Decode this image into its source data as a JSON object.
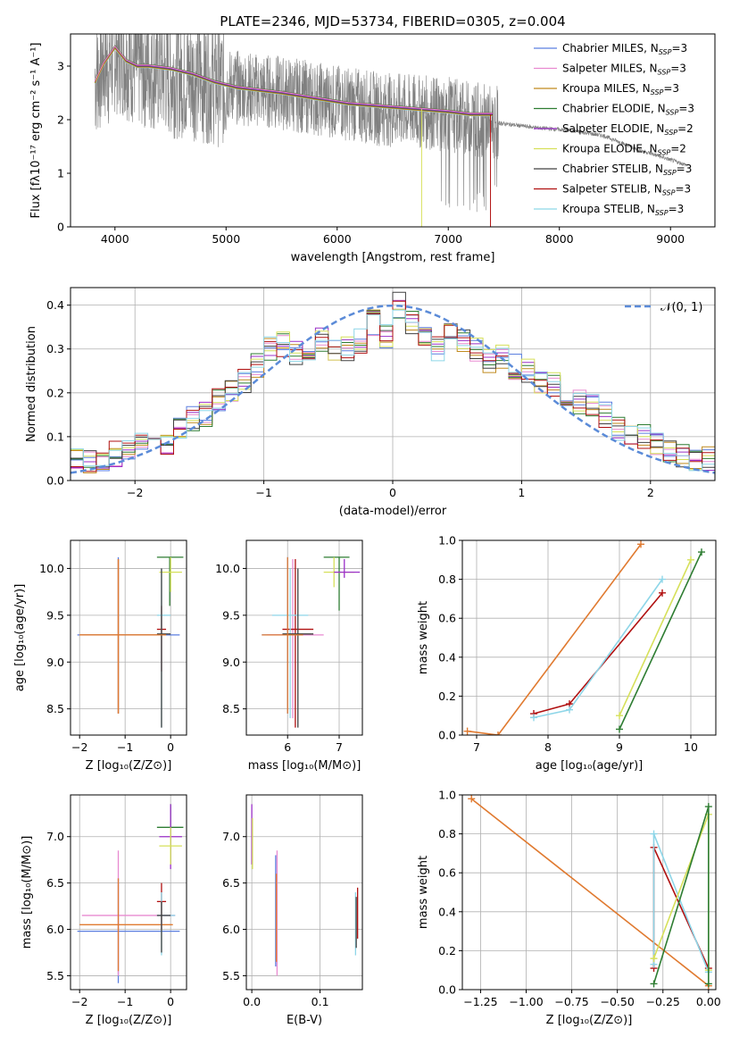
{
  "figure": {
    "title": "PLATE=2346, MJD=53734, FIBERID=0305, z=0.004"
  },
  "colors": [
    "#5b7fe0",
    "#e88ad0",
    "#c08a1e",
    "#2e7d32",
    "#9b30c8",
    "#d6e05a",
    "#404040",
    "#b01010",
    "#8ed6e8"
  ],
  "chart_data": [
    {
      "id": "spectrum",
      "type": "line",
      "xlabel": "wavelength [Angstrom, rest frame]",
      "ylabel": "Flux [fλ10⁻¹⁷ erg cm⁻² s⁻¹ A⁻¹]",
      "xlim": [
        3600,
        9400
      ],
      "ylim": [
        0,
        3.6
      ],
      "xticks": [
        4000,
        5000,
        6000,
        7000,
        8000,
        9000
      ],
      "yticks": [
        0,
        1,
        2,
        3
      ],
      "legend_position": "top-right",
      "legend": [
        {
          "name": "Chabrier MILES, N",
          "sub": "SSP",
          "tail": "=3"
        },
        {
          "name": "Salpeter MILES, N",
          "sub": "SSP",
          "tail": "=3"
        },
        {
          "name": "Kroupa MILES, N",
          "sub": "SSP",
          "tail": "=3"
        },
        {
          "name": "Chabrier ELODIE, N",
          "sub": "SSP",
          "tail": "=3"
        },
        {
          "name": "Salpeter ELODIE, N",
          "sub": "SSP",
          "tail": "=2"
        },
        {
          "name": "Kroupa ELODIE, N",
          "sub": "SSP",
          "tail": "=2"
        },
        {
          "name": "Chabrier STELIB, N",
          "sub": "SSP",
          "tail": "=3"
        },
        {
          "name": "Salpeter STELIB, N",
          "sub": "SSP",
          "tail": "=3"
        },
        {
          "name": "Kroupa STELIB, N",
          "sub": "SSP",
          "tail": "=3"
        }
      ],
      "data_x": [
        3820,
        3860,
        3900,
        3950,
        4000,
        4100,
        4200,
        4300,
        4500,
        4700,
        4900,
        5100,
        5300,
        5500,
        5800,
        6100,
        6400,
        6700,
        7000,
        7400,
        7800,
        8100,
        8400,
        8700,
        9000,
        9150
      ],
      "data_y": [
        2.8,
        2.9,
        3.1,
        3.0,
        3.3,
        3.2,
        3.0,
        3.0,
        2.85,
        2.8,
        2.7,
        2.6,
        2.55,
        2.5,
        2.4,
        2.3,
        2.2,
        2.15,
        2.1,
        1.95,
        1.85,
        1.8,
        1.7,
        1.45,
        1.25,
        1.15
      ],
      "model_x": [
        3820,
        3900,
        4000,
        4100,
        4200,
        4300,
        4500,
        4700,
        4900,
        5100,
        5300,
        5500,
        5800,
        6100,
        6400,
        6700,
        7000,
        7200,
        7400
      ],
      "model_y": [
        2.7,
        3.05,
        3.35,
        3.1,
        3.0,
        3.0,
        2.95,
        2.85,
        2.7,
        2.6,
        2.55,
        2.5,
        2.4,
        2.3,
        2.25,
        2.2,
        2.15,
        2.1,
        2.1
      ]
    },
    {
      "id": "residuals",
      "type": "line",
      "xlabel": "(data-model)/error",
      "ylabel": "Normed distribution",
      "xlim": [
        -2.5,
        2.5
      ],
      "ylim": [
        0,
        0.44
      ],
      "xticks": [
        -2,
        -1,
        0,
        1,
        2
      ],
      "yticks": [
        0.0,
        0.1,
        0.2,
        0.3,
        0.4
      ],
      "legend": "𝒩(0, 1)",
      "legend_position": "top-right",
      "grid": true,
      "hist_x": [
        -2.5,
        -2.4,
        -2.3,
        -2.2,
        -2.1,
        -2.0,
        -1.9,
        -1.8,
        -1.7,
        -1.6,
        -1.5,
        -1.4,
        -1.3,
        -1.2,
        -1.1,
        -1.0,
        -0.9,
        -0.8,
        -0.7,
        -0.6,
        -0.5,
        -0.4,
        -0.3,
        -0.2,
        -0.1,
        0.0,
        0.1,
        0.2,
        0.3,
        0.4,
        0.5,
        0.6,
        0.7,
        0.8,
        0.9,
        1.0,
        1.1,
        1.2,
        1.3,
        1.4,
        1.5,
        1.6,
        1.7,
        1.8,
        1.9,
        2.0,
        2.1,
        2.2,
        2.3,
        2.4
      ],
      "hist_y": [
        0.05,
        0.045,
        0.04,
        0.06,
        0.07,
        0.1,
        0.08,
        0.08,
        0.12,
        0.14,
        0.15,
        0.18,
        0.2,
        0.23,
        0.26,
        0.3,
        0.31,
        0.29,
        0.28,
        0.32,
        0.3,
        0.3,
        0.32,
        0.36,
        0.33,
        0.4,
        0.36,
        0.32,
        0.3,
        0.33,
        0.32,
        0.3,
        0.27,
        0.28,
        0.26,
        0.25,
        0.22,
        0.22,
        0.19,
        0.18,
        0.17,
        0.15,
        0.12,
        0.11,
        0.1,
        0.08,
        0.07,
        0.06,
        0.05,
        0.05
      ]
    },
    {
      "id": "age-vs-Z",
      "type": "scatter",
      "xlabel": "Z [log₁₀(Z/Z⊙)]",
      "ylabel": "age  [log₁₀(age/yr)]",
      "xlim": [
        -2.2,
        0.35
      ],
      "ylim": [
        8.22,
        10.3
      ],
      "xticks": [
        -2,
        -1,
        0
      ],
      "yticks": [
        8.5,
        9.0,
        9.5,
        10.0
      ],
      "grid": true
    },
    {
      "id": "age-vs-mass",
      "type": "scatter",
      "xlabel": "mass [log₁₀(M/M⊙)]",
      "ylabel": "",
      "xlim": [
        5.2,
        7.45
      ],
      "ylim": [
        8.22,
        10.3
      ],
      "xticks": [
        6,
        7
      ],
      "yticks": [
        8.5,
        9.0,
        9.5,
        10.0
      ],
      "grid": true
    },
    {
      "id": "mass-weight-vs-age",
      "type": "line",
      "xlabel": "age  [log₁₀(age/yr)]",
      "ylabel": "mass weight",
      "xlim": [
        6.8,
        10.35
      ],
      "ylim": [
        0,
        1.0
      ],
      "xticks": [
        7,
        8,
        9,
        10
      ],
      "yticks": [
        0.0,
        0.2,
        0.4,
        0.6,
        0.8,
        1.0
      ],
      "grid": true,
      "series": [
        {
          "x": [
            6.87,
            7.3,
            9.3
          ],
          "y": [
            0.02,
            0.0,
            0.98
          ]
        },
        {
          "x": [
            7.8,
            8.3,
            9.6
          ],
          "y": [
            0.11,
            0.16,
            0.73
          ]
        },
        {
          "x": [
            7.8,
            8.3,
            9.6
          ],
          "y": [
            0.09,
            0.13,
            0.8
          ]
        },
        {
          "x": [
            9.0,
            10.0
          ],
          "y": [
            0.1,
            0.9
          ]
        },
        {
          "x": [
            9.0,
            10.15
          ],
          "y": [
            0.03,
            0.94
          ]
        }
      ]
    },
    {
      "id": "mass-vs-Z",
      "type": "scatter",
      "xlabel": "Z [log₁₀(Z/Z⊙)]",
      "ylabel": "mass [log₁₀(M/M⊙)]",
      "xlim": [
        -2.2,
        0.35
      ],
      "ylim": [
        5.35,
        7.45
      ],
      "xticks": [
        -2,
        -1,
        0
      ],
      "yticks": [
        5.5,
        6.0,
        6.5,
        7.0
      ],
      "grid": true
    },
    {
      "id": "mass-vs-EBV",
      "type": "scatter",
      "xlabel": "E(B-V)",
      "ylabel": "",
      "xlim": [
        -0.008,
        0.162
      ],
      "ylim": [
        5.35,
        7.45
      ],
      "xticks": [
        0.0,
        0.1
      ],
      "yticks": [
        5.5,
        6.0,
        6.5,
        7.0
      ],
      "grid": true
    },
    {
      "id": "mass-weight-vs-Z",
      "type": "line",
      "xlabel": "Z [log₁₀(Z/Z⊙)]",
      "ylabel": "mass weight",
      "xlim": [
        -1.35,
        0.04
      ],
      "ylim": [
        0,
        1.0
      ],
      "xticks": [
        -1.25,
        -1.0,
        -0.75,
        -0.5,
        -0.25,
        0.0
      ],
      "yticks": [
        0.0,
        0.2,
        0.4,
        0.6,
        0.8,
        1.0
      ],
      "grid": true,
      "series": [
        {
          "x": [
            -1.3,
            0.0
          ],
          "y": [
            0.98,
            0.02
          ]
        },
        {
          "x": [
            -0.3,
            -0.3,
            0.0
          ],
          "y": [
            0.11,
            0.73,
            0.11
          ]
        },
        {
          "x": [
            -0.3,
            -0.3,
            0.0
          ],
          "y": [
            0.13,
            0.8,
            0.09
          ]
        },
        {
          "x": [
            -0.3,
            0.0,
            0.0
          ],
          "y": [
            0.16,
            0.9,
            0.1
          ]
        },
        {
          "x": [
            -0.3,
            0.0,
            0.0
          ],
          "y": [
            0.03,
            0.94,
            0.03
          ]
        }
      ]
    }
  ]
}
